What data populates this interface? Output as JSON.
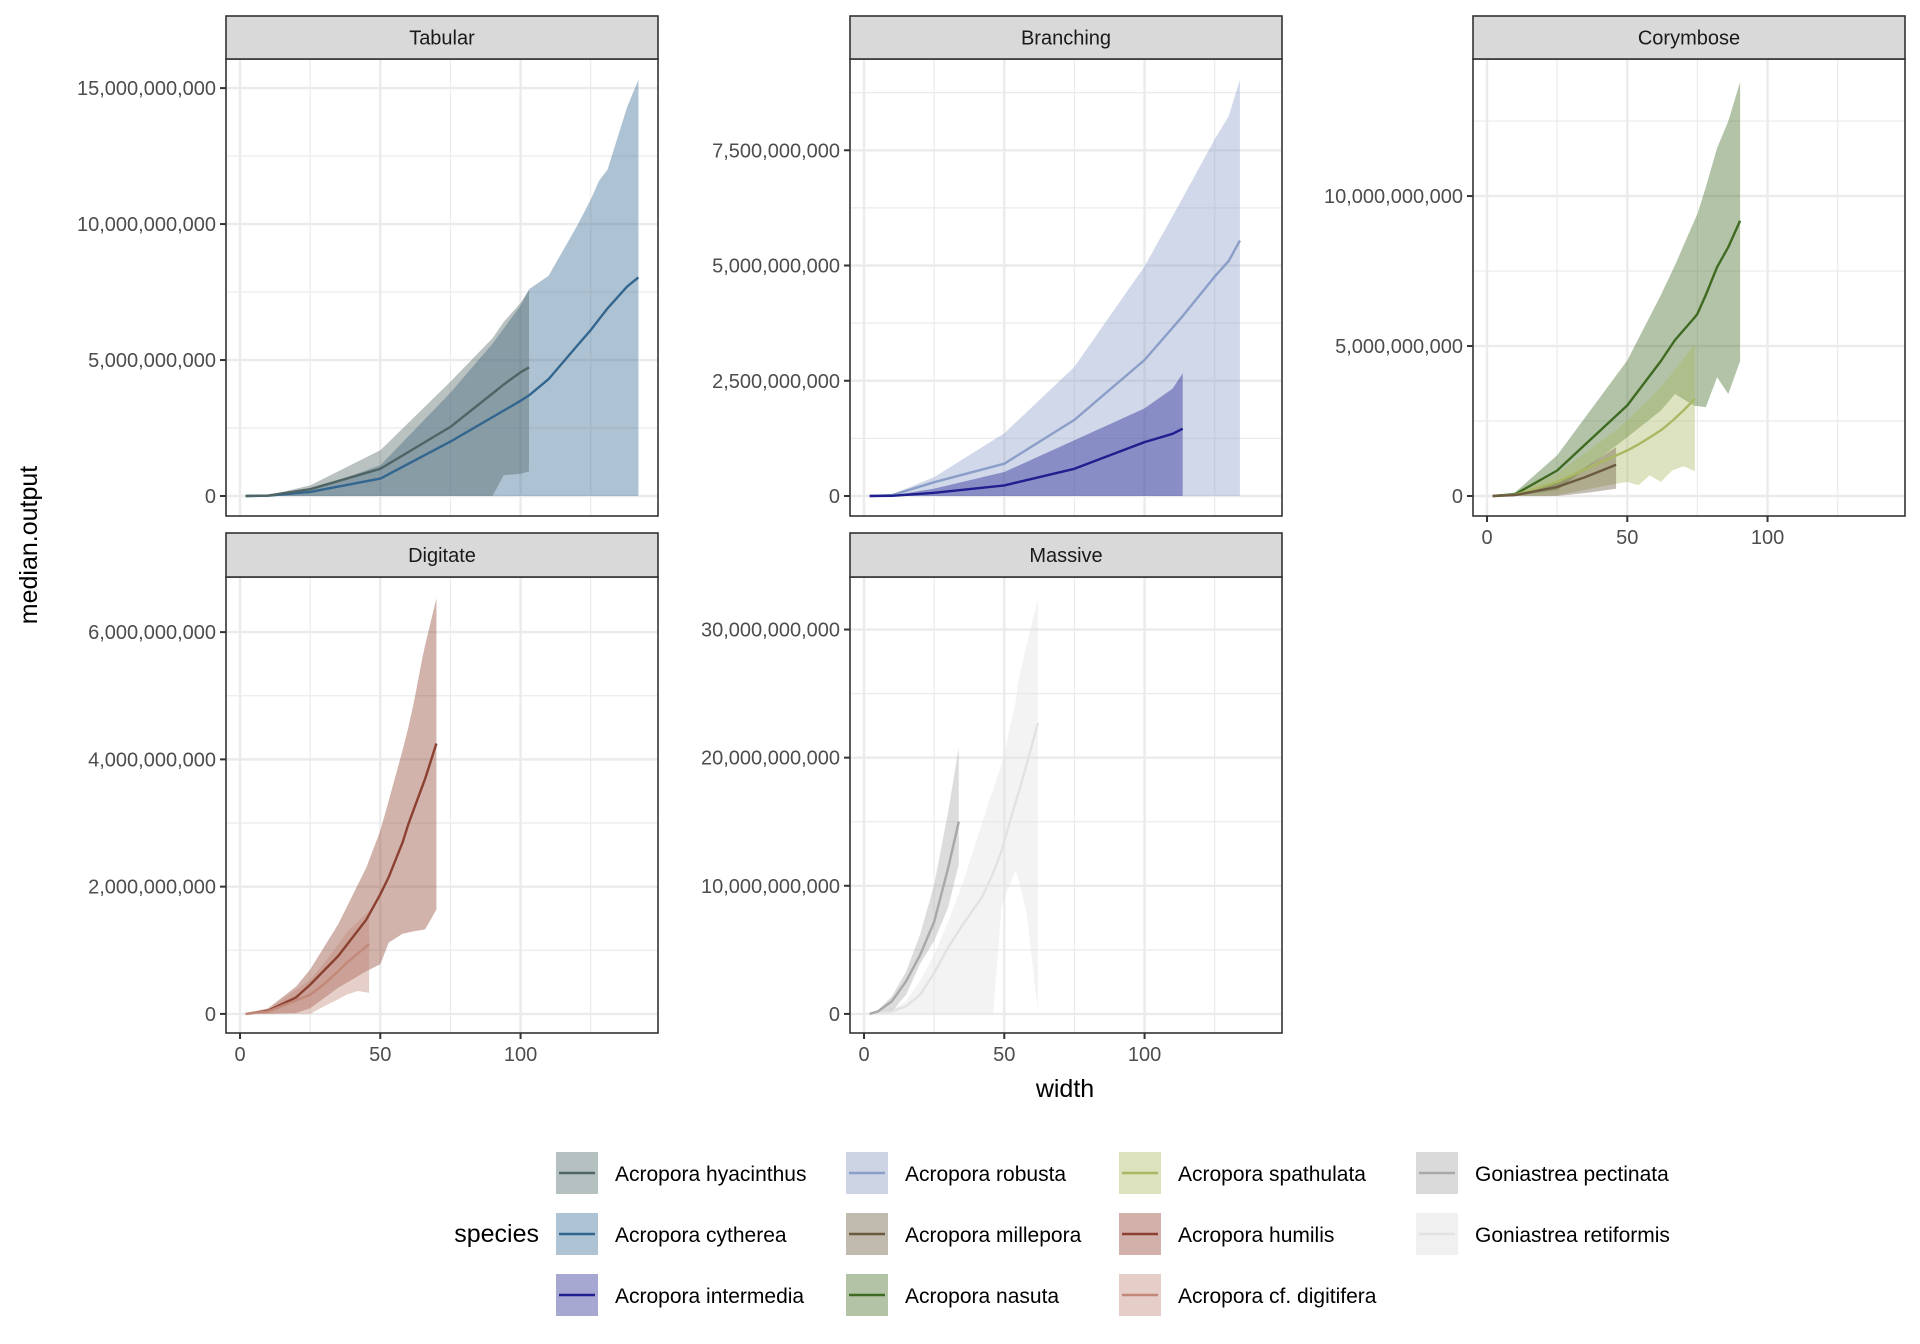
{
  "chart_data": {
    "type": "line",
    "subtype": "faceted line with ribbons",
    "xlabel": "width",
    "ylabel": "median.output",
    "x_ticks": [
      0,
      50,
      100
    ],
    "xlim": [
      -5,
      149
    ],
    "grid": true,
    "legend": {
      "title": "species",
      "position": "bottom",
      "entries": [
        {
          "name": "Acropora hyacinthus",
          "line": "#4f6464",
          "fill": "#b5c1c1"
        },
        {
          "name": "Acropora cytherea",
          "line": "#33668f",
          "fill": "#aec3d4"
        },
        {
          "name": "Acropora intermedia",
          "line": "#1f1f8f",
          "fill": "#a6a8d1"
        },
        {
          "name": "Acropora robusta",
          "line": "#8a9ec8",
          "fill": "#cdd4e4"
        },
        {
          "name": "Acropora millepora",
          "line": "#6b5a40",
          "fill": "#c0bbae"
        },
        {
          "name": "Acropora nasuta",
          "line": "#3f6a22",
          "fill": "#b3c4a6"
        },
        {
          "name": "Acropora spathulata",
          "line": "#a9b862",
          "fill": "#dbe2bc"
        },
        {
          "name": "Acropora humilis",
          "line": "#8b4030",
          "fill": "#d1b0aa"
        },
        {
          "name": "Acropora cf. digitifera",
          "line": "#c28878",
          "fill": "#e5cdc8"
        },
        {
          "name": "Goniastrea pectinata",
          "line": "#a8a8a8",
          "fill": "#dadada"
        },
        {
          "name": "Goniastrea retiformis",
          "line": "#e2e2e2",
          "fill": "#f0f0f0"
        }
      ]
    },
    "panels": [
      {
        "title": "Tabular",
        "ylim": [
          -735000000,
          16070000000
        ],
        "y_ticks": [
          0,
          5000000000,
          10000000000,
          15000000000
        ],
        "y_tick_labels": [
          "0",
          "5,000,000,000",
          "10,000,000,000",
          "15,000,000,000"
        ],
        "show_x_axis": false,
        "series": [
          {
            "species": "Acropora cytherea",
            "x": [
              2,
              10,
              25,
              50,
              75,
              90,
              100,
              103,
              110,
              120,
              125,
              128,
              131,
              138,
              142
            ],
            "median": [
              0,
              10000000,
              150000000,
              640000000,
              2000000000,
              2900000000,
              3500000000,
              3700000000,
              4300000000,
              5500000000,
              6100000000,
              6500000000,
              6900000000,
              7700000000,
              8040000000
            ],
            "lower": [
              0,
              0,
              0,
              0,
              0,
              0,
              0,
              0,
              0,
              0,
              0,
              0,
              0,
              0,
              0
            ],
            "upper": [
              0,
              20000000,
              200000000,
              1130000000,
              3800000000,
              5600000000,
              7000000000,
              7600000000,
              8100000000,
              9900000000,
              10900000000,
              11600000000,
              12000000000,
              14300000000,
              15300000000
            ]
          },
          {
            "species": "Acropora hyacinthus",
            "x": [
              2,
              10,
              25,
              50,
              75,
              90,
              94,
              100,
              103
            ],
            "median": [
              0,
              15000000,
              250000000,
              1000000000,
              2540000000,
              3770000000,
              4100000000,
              4550000000,
              4730000000
            ],
            "lower": [
              0,
              0,
              0,
              0,
              0,
              0,
              760000000,
              820000000,
              900000000
            ],
            "upper": [
              0,
              30000000,
              390000000,
              1680000000,
              4200000000,
              5800000000,
              6400000000,
              7100000000,
              7570000000
            ]
          }
        ]
      },
      {
        "title": "Branching",
        "ylim": [
          -434000000,
          9480000000
        ],
        "y_ticks": [
          0,
          2500000000,
          5000000000,
          7500000000
        ],
        "y_tick_labels": [
          "0",
          "2,500,000,000",
          "5,000,000,000",
          "7,500,000,000"
        ],
        "show_x_axis": false,
        "series": [
          {
            "species": "Acropora robusta",
            "x": [
              2,
              10,
              25,
              50,
              75,
              100,
              113,
              125,
              130,
              134
            ],
            "median": [
              0,
              20000000,
              300000000,
              700000000,
              1650000000,
              2950000000,
              3860000000,
              4760000000,
              5100000000,
              5540000000
            ],
            "lower": [
              0,
              0,
              0,
              0,
              0,
              0,
              0,
              0,
              0,
              0
            ],
            "upper": [
              0,
              40000000,
              410000000,
              1360000000,
              2800000000,
              4980000000,
              6400000000,
              7740000000,
              8240000000,
              9030000000
            ]
          },
          {
            "species": "Acropora intermedia",
            "x": [
              2,
              10,
              25,
              50,
              75,
              100,
              110,
              113.6
            ],
            "median": [
              0,
              5000000,
              70000000,
              230000000,
              590000000,
              1170000000,
              1350000000,
              1460000000
            ],
            "lower": [
              0,
              0,
              0,
              0,
              0,
              0,
              0,
              0
            ],
            "upper": [
              0,
              10000000,
              160000000,
              520000000,
              1210000000,
              1900000000,
              2330000000,
              2660000000
            ]
          }
        ]
      },
      {
        "title": "Corymbose",
        "ylim": [
          -667000000,
          14570000000
        ],
        "y_ticks": [
          0,
          5000000000,
          10000000000
        ],
        "y_tick_labels": [
          "0",
          "5,000,000,000",
          "10,000,000,000"
        ],
        "show_x_axis": true,
        "x_tick_labels": [
          "0",
          "50",
          "100"
        ],
        "series": [
          {
            "species": "Acropora nasuta",
            "x": [
              2,
              10,
              25,
              50,
              62,
              67,
              74,
              75,
              78,
              82,
              86,
              90.2
            ],
            "median": [
              0,
              60000000,
              850000000,
              3020000000,
              4500000000,
              5200000000,
              5950000000,
              6070000000,
              6700000000,
              7630000000,
              8300000000,
              9180000000
            ],
            "lower": [
              0,
              0,
              190000000,
              1960000000,
              2850000000,
              3400000000,
              3000000000,
              3000000000,
              2960000000,
              3960000000,
              3400000000,
              4500000000
            ],
            "upper": [
              0,
              120000000,
              1360000000,
              4520000000,
              6700000000,
              7700000000,
              9200000000,
              9400000000,
              10300000000,
              11600000000,
              12500000000,
              13800000000
            ]
          },
          {
            "species": "Acropora spathulata",
            "x": [
              2,
              10,
              25,
              46,
              50,
              54,
              58,
              62,
              66,
              70,
              74.1
            ],
            "median": [
              0,
              40000000,
              470000000,
              1350000000,
              1520000000,
              1720000000,
              1950000000,
              2190000000,
              2500000000,
              2850000000,
              3240000000
            ],
            "lower": [
              0,
              0,
              20000000,
              410000000,
              470000000,
              360000000,
              690000000,
              470000000,
              850000000,
              990000000,
              830000000
            ],
            "upper": [
              0,
              70000000,
              740000000,
              2200000000,
              2520000000,
              2880000000,
              3250000000,
              3630000000,
              4100000000,
              4580000000,
              5070000000
            ]
          },
          {
            "species": "Acropora millepora",
            "x": [
              2,
              10,
              25,
              35,
              46
            ],
            "median": [
              0,
              30000000,
              300000000,
              630000000,
              1040000000
            ],
            "lower": [
              0,
              0,
              0,
              100000000,
              240000000
            ],
            "upper": [
              0,
              50000000,
              470000000,
              950000000,
              1630000000
            ]
          }
        ]
      },
      {
        "title": "Digitate",
        "ylim": [
          -300000000,
          6866000000
        ],
        "y_ticks": [
          0,
          2000000000,
          4000000000,
          6000000000
        ],
        "y_tick_labels": [
          "0",
          "2,000,000,000",
          "4,000,000,000",
          "6,000,000,000"
        ],
        "show_x_axis": true,
        "x_tick_labels": [
          "0",
          "50",
          "100"
        ],
        "series": [
          {
            "species": "Acropora humilis",
            "x": [
              2,
              10,
              20,
              25,
              35,
              45,
              50,
              53,
              58,
              60,
              62,
              65,
              66,
              70
            ],
            "median": [
              0,
              50000000,
              260000000,
              460000000,
              910000000,
              1480000000,
              1880000000,
              2150000000,
              2700000000,
              2980000000,
              3220000000,
              3580000000,
              3700000000,
              4250000000
            ],
            "lower": [
              0,
              0,
              15000000,
              90000000,
              410000000,
              670000000,
              780000000,
              1120000000,
              1260000000,
              1280000000,
              1300000000,
              1320000000,
              1330000000,
              1640000000
            ],
            "upper": [
              0,
              90000000,
              430000000,
              700000000,
              1410000000,
              2300000000,
              2880000000,
              3350000000,
              4150000000,
              4500000000,
              4900000000,
              5600000000,
              5800000000,
              6530000000
            ]
          },
          {
            "species": "Acropora cf. digitifera",
            "x": [
              2,
              10,
              25,
              30,
              35,
              38,
              42,
              46
            ],
            "median": [
              0,
              40000000,
              300000000,
              470000000,
              670000000,
              800000000,
              950000000,
              1100000000
            ],
            "lower": [
              0,
              0,
              0,
              120000000,
              230000000,
              300000000,
              360000000,
              330000000
            ],
            "upper": [
              0,
              70000000,
              540000000,
              800000000,
              1090000000,
              1280000000,
              1450000000,
              1620000000
            ]
          }
        ]
      },
      {
        "title": "Massive",
        "ylim": [
          -1490000000,
          34100000000
        ],
        "y_ticks": [
          0,
          10000000000,
          20000000000,
          30000000000
        ],
        "y_tick_labels": [
          "0",
          "10,000,000,000",
          "20,000,000,000",
          "30,000,000,000"
        ],
        "show_x_axis": true,
        "x_tick_labels": [
          "0",
          "50",
          "100"
        ],
        "series": [
          {
            "species": "Goniastrea retiformis",
            "x": [
              2,
              10,
              15,
              20,
              25,
              30,
              35,
              42,
              45,
              46,
              49,
              50,
              54,
              55,
              58,
              62
            ],
            "median": [
              0,
              200000000,
              600000000,
              1500000000,
              3200000000,
              5200000000,
              6900000000,
              9100000000,
              10500000000,
              11000000000,
              12700000000,
              13500000000,
              16500000000,
              17200000000,
              19500000000,
              22700000000
            ],
            "lower": [
              0,
              0,
              0,
              0,
              0,
              0,
              0,
              0,
              0,
              0,
              8300000000,
              9000000000,
              11200000000,
              10600000000,
              7800000000,
              200000000
            ],
            "upper": [
              0,
              400000000,
              1000000000,
              2600000000,
              4600000000,
              7200000000,
              10100000000,
              14800000000,
              16900000000,
              17500000000,
              19500000000,
              20300000000,
              24300000000,
              26000000000,
              28800000000,
              32400000000
            ]
          },
          {
            "species": "Goniastrea pectinata",
            "x": [
              2,
              5,
              10,
              15,
              20,
              25,
              30,
              33.8
            ],
            "median": [
              0,
              200000000,
              1000000000,
              2550000000,
              4600000000,
              7200000000,
              11400000000,
              15000000000
            ],
            "lower": [
              0,
              100000000,
              200000000,
              1500000000,
              3900000000,
              5700000000,
              8300000000,
              11700000000
            ],
            "upper": [
              0,
              300000000,
              1400000000,
              3300000000,
              6200000000,
              10100000000,
              15800000000,
              20800000000
            ]
          }
        ]
      }
    ]
  }
}
